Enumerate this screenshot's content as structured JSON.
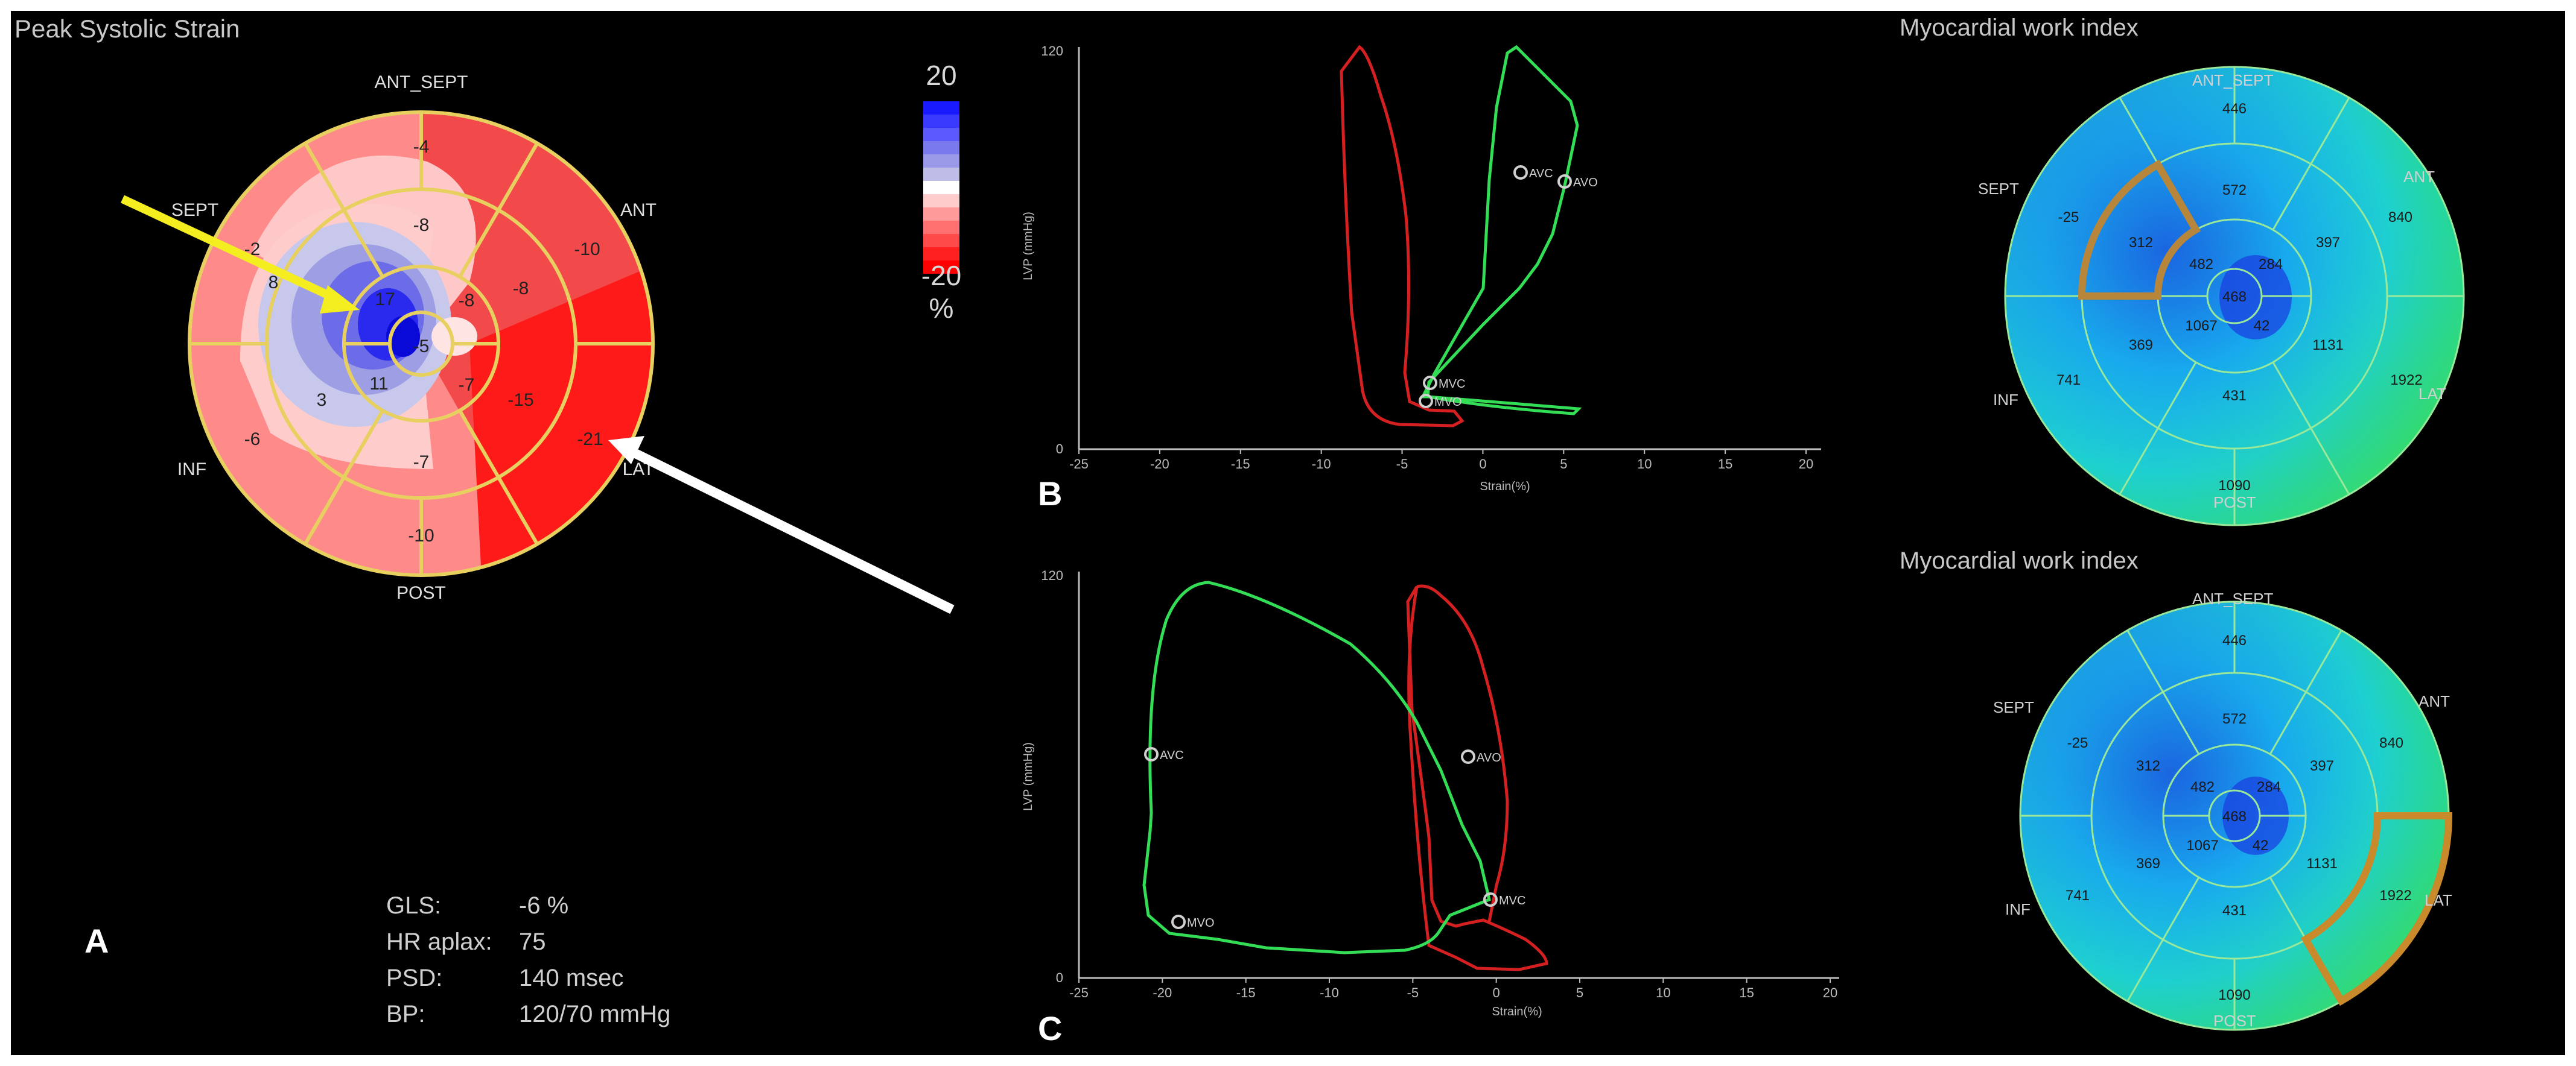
{
  "panel_a": {
    "title": "Peak Systolic Strain",
    "letter": "A",
    "scale": {
      "max": "20",
      "min": "-20",
      "unit": "%",
      "colors": [
        "#1a1aff",
        "#3a3aff",
        "#5a5aff",
        "#7a7aee",
        "#9a9ae8",
        "#bdbde8",
        "#ffffff",
        "#ffcccc",
        "#ff9a9a",
        "#ff7070",
        "#ff4a4a",
        "#ff2020",
        "#ff0000"
      ]
    },
    "wall_labels": {
      "ant_sept": "ANT_SEPT",
      "ant": "ANT",
      "lat": "LAT",
      "post": "POST",
      "inf": "INF",
      "sept": "SEPT"
    },
    "segments": {
      "basal": [
        "-4",
        "-10",
        "-21",
        "-10",
        "-6",
        "-2"
      ],
      "mid": [
        "-8",
        "-8",
        "-15",
        "-7",
        "3",
        "8"
      ],
      "apical": [
        "-8",
        "-7",
        "11",
        "17"
      ],
      "apex": "-5"
    },
    "metrics": [
      {
        "label": "GLS:",
        "value": "-6 %"
      },
      {
        "label": "HR aplax:",
        "value": "75"
      },
      {
        "label": "PSD:",
        "value": "140 msec"
      },
      {
        "label": "BP:",
        "value": "120/70 mmHg"
      }
    ]
  },
  "panel_b": {
    "letter": "B",
    "xlabel": "Strain(%)",
    "ylabel": "LVP (mmHg)",
    "xticks": [
      "-25",
      "-20",
      "-15",
      "-10",
      "-5",
      "0",
      "5",
      "10",
      "15",
      "20"
    ],
    "yticks": [
      "0",
      "120"
    ],
    "markers": {
      "avc": "AVC",
      "avo": "AVO",
      "mvc": "MVC",
      "mvo": "MVO"
    }
  },
  "panel_c": {
    "letter": "C",
    "xlabel": "Strain(%)",
    "ylabel": "LVP (mmHg)",
    "xticks": [
      "-25",
      "-20",
      "-15",
      "-10",
      "-5",
      "0",
      "5",
      "10",
      "15",
      "20"
    ],
    "yticks": [
      "0",
      "120"
    ],
    "markers": {
      "avc": "AVC",
      "avo": "AVO",
      "mvc": "MVC",
      "mvo": "MVO"
    }
  },
  "mwi": {
    "title": "Myocardial work index",
    "wall_labels": {
      "ant_sept": "ANT_SEPT",
      "ant": "ANT",
      "lat": "LAT",
      "post": "POST",
      "inf": "INF",
      "sept": "SEPT"
    },
    "segments": {
      "basal": [
        "446",
        "840",
        "1922",
        "1090",
        "741",
        "-25"
      ],
      "mid": [
        "572",
        "397",
        "1131",
        "431",
        "369",
        "312"
      ],
      "apical": [
        "284",
        "42",
        "1067",
        "482"
      ],
      "apex": "468"
    }
  },
  "colors": {
    "red_loop": "#d42020",
    "green_loop": "#33dd55",
    "ring_gold": "#e8d060",
    "mwi_line": "#9ae89a",
    "highlight": "#b8863a"
  }
}
